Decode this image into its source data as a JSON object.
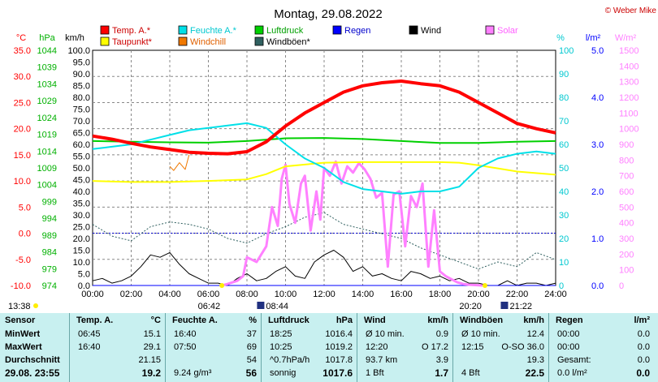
{
  "header": {
    "title": "Montag, 29.08.2022",
    "credit": "© Weber Mike"
  },
  "legend": [
    {
      "name": "Temp. A.*",
      "color": "#ff0000"
    },
    {
      "name": "Feuchte A.*",
      "color": "#00e0e8"
    },
    {
      "name": "Luftdruck",
      "color": "#00d000"
    },
    {
      "name": "Regen",
      "color": "#0000ff"
    },
    {
      "name": "Wind",
      "color": "#000000"
    },
    {
      "name": "Solar",
      "color": "#ff80ff"
    },
    {
      "name": "Taupunkt*",
      "color": "#ffff00"
    },
    {
      "name": "Windchill",
      "color": "#f07800"
    },
    {
      "name": "Windböen*",
      "color": "#306060"
    }
  ],
  "axes": {
    "temp": {
      "unit": "°C",
      "ticks": [
        "35.0",
        "30.0",
        "25.0",
        "20.0",
        "15.0",
        "10.0",
        "5.0",
        "0.0",
        "-5.0",
        "-10.0"
      ],
      "color": "#ff0000"
    },
    "pressure": {
      "unit": "hPa",
      "ticks": [
        "1044",
        "1039",
        "1034",
        "1029",
        "1024",
        "1019",
        "1014",
        "1009",
        "1004",
        "999",
        "994",
        "989",
        "984",
        "979",
        "974"
      ],
      "color": "#00b000"
    },
    "wind": {
      "unit": "km/h",
      "ticks": [
        "100.0",
        "95.0",
        "90.0",
        "85.0",
        "80.0",
        "75.0",
        "70.0",
        "65.0",
        "60.0",
        "55.0",
        "50.0",
        "45.0",
        "40.0",
        "35.0",
        "30.0",
        "25.0",
        "20.0",
        "15.0",
        "10.0",
        "5.0",
        "0.0"
      ],
      "color": "#000000"
    },
    "humidity": {
      "unit": "%",
      "ticks": [
        "100",
        "90",
        "80",
        "70",
        "60",
        "50",
        "40",
        "30",
        "20",
        "10",
        "0"
      ],
      "color": "#00c8d0"
    },
    "rain": {
      "unit": "l/m²",
      "ticks": [
        "5.0",
        "4.0",
        "3.0",
        "2.0",
        "1.0",
        "0.0"
      ],
      "color": "#0000ff"
    },
    "solar": {
      "unit": "W/m²",
      "ticks": [
        "1500",
        "1400",
        "1300",
        "1200",
        "1100",
        "1000",
        "900",
        "800",
        "700",
        "600",
        "500",
        "400",
        "300",
        "200",
        "100",
        "0"
      ],
      "color": "#ff80ff"
    },
    "time": {
      "ticks": [
        "00:00",
        "02:00",
        "04:00",
        "06:00",
        "08:00",
        "10:00",
        "12:00",
        "14:00",
        "16:00",
        "18:00",
        "20:00",
        "22:00",
        "24:00"
      ]
    }
  },
  "sun_markers": {
    "moonrise": "13:38",
    "sunrise": "06:42",
    "civil_dawn": "08:44",
    "sunset": "20:20",
    "civil_dusk": "21:22"
  },
  "chart_data": {
    "type": "line",
    "x_unit": "hour of day",
    "xlim": [
      0,
      24
    ],
    "series": [
      {
        "name": "Temp. A.*",
        "axis": "°C",
        "ylim": [
          -10,
          35
        ],
        "x": [
          0,
          1,
          2,
          3,
          4,
          5,
          6,
          7,
          8,
          9,
          10,
          11,
          12,
          13,
          14,
          15,
          16,
          17,
          18,
          19,
          20,
          21,
          22,
          23,
          24
        ],
        "values": [
          18.6,
          18.0,
          17.2,
          16.5,
          16.0,
          15.5,
          15.3,
          15.2,
          15.6,
          17.5,
          20.5,
          23.0,
          25.0,
          27.0,
          28.2,
          28.8,
          29.1,
          28.6,
          28.2,
          27.0,
          25.0,
          23.0,
          21.0,
          20.0,
          19.2
        ]
      },
      {
        "name": "Feuchte A.*",
        "axis": "%",
        "ylim": [
          0,
          100
        ],
        "x": [
          0,
          1,
          2,
          3,
          4,
          5,
          6,
          7,
          8,
          9,
          10,
          11,
          12,
          13,
          14,
          15,
          16,
          17,
          18,
          19,
          20,
          21,
          22,
          23,
          24
        ],
        "values": [
          58,
          59,
          60,
          62,
          64,
          66,
          67,
          68,
          69,
          67,
          60,
          54,
          50,
          44,
          41,
          40,
          39,
          40,
          40,
          42,
          50,
          54,
          56,
          57,
          56
        ]
      },
      {
        "name": "Luftdruck",
        "axis": "hPa",
        "ylim": [
          974,
          1044
        ],
        "x": [
          0,
          2,
          4,
          6,
          8,
          10,
          12,
          14,
          16,
          18,
          20,
          22,
          24
        ],
        "values": [
          1017.0,
          1016.8,
          1016.6,
          1016.5,
          1017.0,
          1017.8,
          1017.9,
          1017.6,
          1017.0,
          1016.4,
          1016.4,
          1016.8,
          1017.0
        ]
      },
      {
        "name": "Taupunkt*",
        "axis": "°C",
        "ylim": [
          -10,
          35
        ],
        "x": [
          0,
          2,
          4,
          6,
          8,
          9,
          10,
          12,
          14,
          16,
          18,
          19,
          20,
          21,
          22,
          24
        ],
        "values": [
          10.0,
          9.8,
          9.8,
          10.0,
          10.3,
          11.3,
          12.8,
          13.5,
          13.6,
          13.6,
          13.6,
          13.5,
          13.0,
          12.4,
          11.8,
          11.2
        ]
      },
      {
        "name": "Windchill",
        "axis": "°C",
        "ylim": [
          -10,
          35
        ],
        "x": [
          4.0,
          4.2,
          4.5,
          4.8,
          5.0
        ],
        "values": [
          12.8,
          12.0,
          13.5,
          12.2,
          15.0
        ]
      },
      {
        "name": "Wind",
        "axis": "km/h",
        "ylim": [
          0,
          100
        ],
        "x": [
          0,
          0.5,
          1,
          1.5,
          2,
          2.5,
          3,
          3.5,
          4,
          4.5,
          5,
          5.5,
          6,
          6.5,
          7,
          7.5,
          8,
          8.5,
          9,
          9.5,
          10,
          10.5,
          11,
          11.5,
          12,
          12.5,
          13,
          13.5,
          14,
          14.5,
          15,
          15.5,
          16,
          16.5,
          17,
          17.5,
          18,
          18.5,
          19,
          19.5,
          20,
          20.5,
          21,
          21.5,
          22,
          22.5,
          23,
          23.5,
          24
        ],
        "values": [
          2,
          3,
          1,
          2,
          4,
          8,
          13,
          12,
          14,
          9,
          5,
          3,
          1,
          1,
          0,
          3,
          5,
          2,
          3,
          6,
          8,
          4,
          3,
          10,
          13,
          15,
          12,
          6,
          8,
          4,
          5,
          3,
          2,
          6,
          5,
          3,
          4,
          2,
          3,
          1,
          1,
          0,
          0,
          2,
          0,
          1,
          1,
          0,
          1
        ]
      },
      {
        "name": "Windböen*",
        "axis": "km/h",
        "ylim": [
          0,
          100
        ],
        "x": [
          0,
          1,
          2,
          3,
          4,
          5,
          6,
          7,
          8,
          9,
          10,
          11,
          12,
          13,
          14,
          15,
          16,
          17,
          18,
          19,
          20,
          21,
          22,
          23,
          24
        ],
        "values": [
          26,
          21,
          19,
          25,
          27,
          26,
          24,
          20,
          18,
          22,
          25,
          29,
          31,
          26,
          24,
          22,
          20,
          16,
          13,
          10,
          7,
          10,
          8,
          14,
          11
        ]
      },
      {
        "name": "Solar",
        "axis": "W/m²",
        "ylim": [
          0,
          1500
        ],
        "x": [
          6.7,
          7.0,
          7.5,
          7.8,
          8.0,
          8.5,
          9.0,
          9.3,
          9.6,
          9.8,
          10.0,
          10.2,
          10.5,
          10.8,
          11.0,
          11.3,
          11.6,
          11.8,
          12.0,
          12.3,
          12.6,
          12.9,
          13.2,
          13.5,
          13.8,
          14.1,
          14.4,
          14.7,
          15.0,
          15.3,
          15.6,
          15.9,
          16.2,
          16.5,
          16.8,
          17.1,
          17.4,
          17.7,
          18.0,
          18.3,
          18.6,
          18.9,
          19.2,
          19.5,
          20.2
        ],
        "values": [
          0,
          10,
          30,
          60,
          180,
          150,
          250,
          500,
          380,
          680,
          770,
          520,
          400,
          650,
          700,
          350,
          600,
          420,
          750,
          700,
          790,
          650,
          760,
          720,
          780,
          740,
          680,
          560,
          590,
          120,
          580,
          600,
          250,
          570,
          500,
          650,
          120,
          480,
          90,
          60,
          40,
          20,
          10,
          5,
          0
        ]
      },
      {
        "name": "Regen",
        "axis": "l/m²",
        "ylim": [
          0,
          5
        ],
        "x": [
          0,
          24
        ],
        "values": [
          0.0,
          0.0
        ]
      }
    ]
  },
  "stats": {
    "columns": [
      {
        "title": "Sensor",
        "unit": "",
        "rows": [
          "MinWert",
          "MaxWert",
          "Durchschnitt",
          "29.08.  23:55"
        ]
      },
      {
        "title": "Temp. A.",
        "unit": "°C",
        "rows": [
          [
            "06:45",
            "15.1"
          ],
          [
            "16:40",
            "29.1"
          ],
          [
            "",
            "21.15"
          ],
          [
            "",
            "19.2"
          ]
        ]
      },
      {
        "title": "Feuchte A.",
        "unit": "%",
        "rows": [
          [
            "16:40",
            "37"
          ],
          [
            "07:50",
            "69"
          ],
          [
            "",
            "54"
          ],
          [
            "9.24 g/m³",
            "56"
          ]
        ]
      },
      {
        "title": "Luftdruck",
        "unit": "hPa",
        "rows": [
          [
            "18:25",
            "1016.4"
          ],
          [
            "10:25",
            "1019.2"
          ],
          [
            "^0.7hPa/h",
            "1017.8"
          ],
          [
            "sonnig",
            "1017.6"
          ]
        ]
      },
      {
        "title": "Wind",
        "unit": "km/h",
        "rows": [
          [
            "Ø 10 min.",
            "0.9"
          ],
          [
            "12:20",
            "O 17.2"
          ],
          [
            "93.7 km",
            "3.9"
          ],
          [
            "1 Bft",
            "1.7"
          ]
        ]
      },
      {
        "title": "Windböen",
        "unit": "km/h",
        "rows": [
          [
            "Ø 10 min.",
            "12.4"
          ],
          [
            "12:15",
            "O-SO 36.0"
          ],
          [
            "",
            "19.3"
          ],
          [
            "4 Bft",
            "22.5"
          ]
        ]
      },
      {
        "title": "Regen",
        "unit": "l/m²",
        "rows": [
          [
            "00:00",
            "0.0"
          ],
          [
            "00:00",
            "0.0"
          ],
          [
            "Gesamt:",
            "0.0"
          ],
          [
            "0.0 l/m²",
            "0.0"
          ]
        ]
      }
    ]
  }
}
